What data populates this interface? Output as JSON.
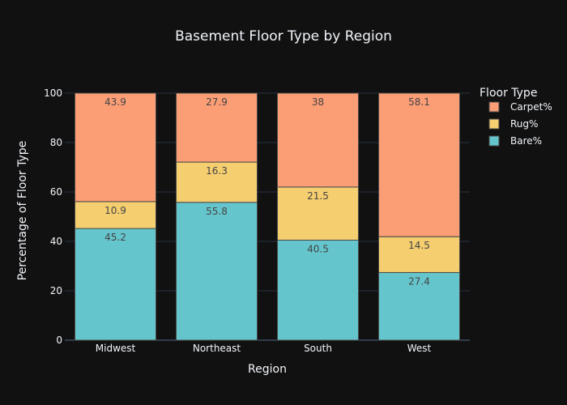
{
  "chart_data": {
    "type": "bar",
    "stacked": true,
    "title": "Basement Floor Type by Region",
    "xlabel": "Region",
    "ylabel": "Percentage of Floor Type",
    "categories": [
      "Midwest",
      "Northeast",
      "South",
      "West"
    ],
    "ylim": [
      0,
      100
    ],
    "yticks": [
      0,
      20,
      40,
      60,
      80,
      100
    ],
    "grid": true,
    "legend": {
      "title": "Floor Type",
      "placement": "right"
    },
    "series": [
      {
        "name": "Bare%",
        "color": "#65C5CC",
        "values": [
          45.2,
          55.8,
          40.5,
          27.4
        ]
      },
      {
        "name": "Rug%",
        "color": "#F5CE70",
        "values": [
          10.9,
          16.3,
          21.5,
          14.5
        ]
      },
      {
        "name": "Carpet%",
        "color": "#FB9D75",
        "values": [
          43.9,
          27.9,
          38,
          58.1
        ]
      }
    ],
    "legend_order": [
      "Carpet%",
      "Rug%",
      "Bare%"
    ]
  },
  "colors": {
    "background": "#111111",
    "grid": "#283442",
    "text": "#f2f5fa",
    "bar_label": "#444444",
    "bar_outline": "#4a4a4a"
  }
}
